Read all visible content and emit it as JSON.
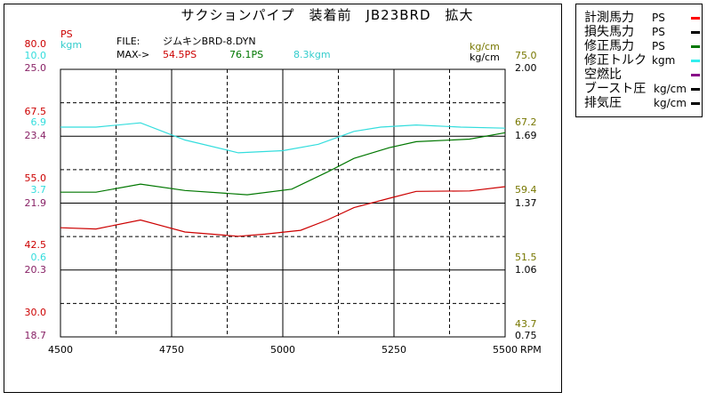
{
  "title": "サクションパイプ　装着前　JB23BRD　拡大",
  "file_label": "FILE:",
  "file_name": "ジムキンBRD-8.DYN",
  "max_label": "MAX->",
  "max_values": {
    "ps": "54.5PS",
    "ps2": "76.1PS",
    "kgm": "8.3kgm"
  },
  "left_units": {
    "ps": "PS",
    "kgm": "kgm"
  },
  "right_units": {
    "a": "kg/cm",
    "b": "kg/cm"
  },
  "x_unit": "RPM",
  "colors": {
    "measured_ps": "#cc0000",
    "loss_ps": "#000000",
    "corrected_ps": "#007700",
    "corrected_torque": "#33dddd",
    "air_fuel": "#880088",
    "boost": "#000000",
    "exhaust": "#000000",
    "ps_axis": "#cc0000",
    "kgm_axis": "#33dddd",
    "third_axis": "#882266",
    "right_axis_a": "#777700",
    "right_axis_b": "#000000"
  },
  "legend": [
    {
      "label": "計測馬力",
      "unit": "PS",
      "color": "#ff0000"
    },
    {
      "label": "損失馬力",
      "unit": "PS",
      "color": "#000000"
    },
    {
      "label": "修正馬力",
      "unit": "PS",
      "color": "#007700"
    },
    {
      "label": "修正トルク",
      "unit": "kgm",
      "color": "#33eeee"
    },
    {
      "label": "空燃比",
      "unit": "",
      "color": "#880088"
    },
    {
      "label": "ブースト圧",
      "unit": "kg/cm",
      "color": "#000000"
    },
    {
      "label": "排気圧",
      "unit": "kg/cm",
      "color": "#000000"
    }
  ],
  "chart_data": {
    "type": "line",
    "x_ticks": [
      "4500",
      "4750",
      "5000",
      "5250",
      "5500"
    ],
    "xlim": [
      4500,
      5500
    ],
    "left_ticks_ps": [
      "80.0",
      "67.5",
      "55.0",
      "42.5",
      "30.0"
    ],
    "left_ticks_kgm": [
      "10.0",
      "6.9",
      "3.7",
      "0.6"
    ],
    "left_ticks_third": [
      "25.0",
      "23.4",
      "21.9",
      "20.3",
      "18.7"
    ],
    "right_ticks_a": [
      "75.0",
      "67.2",
      "59.4",
      "51.5",
      "43.7"
    ],
    "right_ticks_b": [
      "2.00",
      "1.69",
      "1.37",
      "1.06",
      "0.75"
    ],
    "ps_ylim": [
      17.5,
      80.0
    ],
    "kgm_ylim": [
      -2.5,
      10.0
    ],
    "grid": true,
    "series": [
      {
        "name": "計測馬力",
        "unit": "PS",
        "color": "#cc0000",
        "x": [
          4500,
          4580,
          4680,
          4780,
          4900,
          4960,
          5040,
          5100,
          5160,
          5240,
          5300,
          5420,
          5530
        ],
        "y": [
          43.0,
          42.7,
          44.8,
          42.0,
          41.0,
          41.5,
          42.4,
          44.8,
          47.7,
          49.9,
          51.5,
          51.6,
          52.6
        ]
      },
      {
        "name": "修正馬力",
        "unit": "PS",
        "color": "#007700",
        "x": [
          4500,
          4580,
          4680,
          4780,
          4920,
          5020,
          5100,
          5160,
          5240,
          5300,
          5420,
          5530
        ],
        "y": [
          51.3,
          51.3,
          53.2,
          51.7,
          50.7,
          52.0,
          56.0,
          59.2,
          61.7,
          63.1,
          63.7,
          65.2
        ]
      },
      {
        "name": "修正トルク",
        "unit": "kgm",
        "color": "#33dddd",
        "x": [
          4500,
          4580,
          4680,
          4780,
          4900,
          5000,
          5080,
          5160,
          5220,
          5300,
          5400,
          5530
        ],
        "y": [
          7.3,
          7.3,
          7.5,
          6.7,
          6.1,
          6.2,
          6.5,
          7.1,
          7.3,
          7.4,
          7.3,
          7.25
        ]
      }
    ]
  }
}
